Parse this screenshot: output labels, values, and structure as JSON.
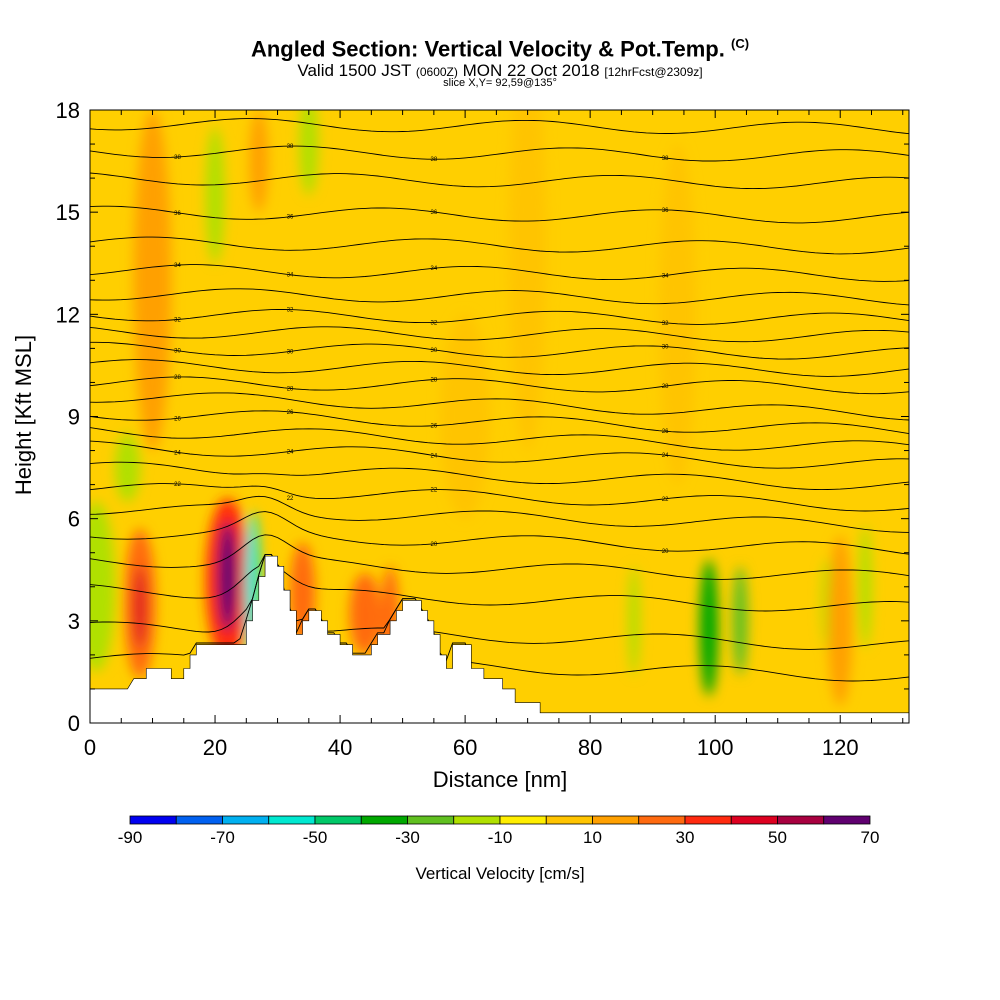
{
  "header": {
    "title_main": "Angled Section: Vertical Velocity & Pot.Temp.",
    "title_unit": "(C)",
    "valid_prefix": "Valid 1500 JST",
    "valid_utc": "(0600Z)",
    "valid_date": "MON 22 Oct 2018",
    "valid_fcst": "[12hrFcst@2309z]",
    "slice": "slice X,Y= 92,59@135°"
  },
  "chart_data": {
    "type": "heatmap",
    "xlabel": "Distance [nm]",
    "ylabel": "Height [Kft MSL]",
    "xlim": [
      0,
      131
    ],
    "ylim": [
      0,
      18
    ],
    "xticks": [
      0,
      20,
      40,
      60,
      80,
      100,
      120
    ],
    "yticks": [
      0,
      3,
      6,
      9,
      12,
      15,
      18
    ],
    "colorbar": {
      "title": "Vertical Velocity [cm/s]",
      "ticks": [
        -90,
        -70,
        -50,
        -30,
        -10,
        10,
        30,
        50,
        70
      ],
      "bins": [
        -90,
        -80,
        -70,
        -60,
        -50,
        -40,
        -30,
        -20,
        -10,
        0,
        10,
        20,
        30,
        40,
        50,
        60,
        70
      ],
      "colors": [
        "#0000f0",
        "#0060f0",
        "#00b0f0",
        "#00e8d0",
        "#00c868",
        "#00a800",
        "#60c020",
        "#b0e000",
        "#ffee00",
        "#ffc400",
        "#ffa000",
        "#ff6a10",
        "#ff2a10",
        "#dd0020",
        "#a80040",
        "#600070"
      ]
    },
    "terrain": [
      [
        0,
        1
      ],
      [
        6,
        1
      ],
      [
        7,
        1.3
      ],
      [
        9,
        1.3
      ],
      [
        9,
        1.6
      ],
      [
        13,
        1.6
      ],
      [
        13,
        1.3
      ],
      [
        15,
        1.3
      ],
      [
        15,
        1.6
      ],
      [
        16,
        1.6
      ],
      [
        16,
        2
      ],
      [
        17,
        2
      ],
      [
        17,
        2.3
      ],
      [
        25,
        2.3
      ],
      [
        25,
        3
      ],
      [
        26,
        3
      ],
      [
        26,
        3.6
      ],
      [
        27,
        3.6
      ],
      [
        27,
        4.3
      ],
      [
        28,
        4.3
      ],
      [
        28,
        4.9
      ],
      [
        30,
        4.9
      ],
      [
        30,
        4.6
      ],
      [
        31,
        4.6
      ],
      [
        31,
        3.9
      ],
      [
        32,
        3.9
      ],
      [
        32,
        3.3
      ],
      [
        33,
        3.3
      ],
      [
        33,
        2.6
      ],
      [
        34,
        2.6
      ],
      [
        34,
        3
      ],
      [
        35,
        3
      ],
      [
        35,
        3.3
      ],
      [
        37,
        3.3
      ],
      [
        37,
        3
      ],
      [
        38,
        3
      ],
      [
        38,
        2.6
      ],
      [
        40,
        2.6
      ],
      [
        40,
        2.3
      ],
      [
        42,
        2.3
      ],
      [
        42,
        2
      ],
      [
        45,
        2
      ],
      [
        45,
        2.3
      ],
      [
        46,
        2.3
      ],
      [
        46,
        2.6
      ],
      [
        48,
        2.6
      ],
      [
        48,
        3
      ],
      [
        49,
        3
      ],
      [
        49,
        3.3
      ],
      [
        50,
        3.3
      ],
      [
        50,
        3.6
      ],
      [
        53,
        3.6
      ],
      [
        53,
        3.3
      ],
      [
        54,
        3.3
      ],
      [
        54,
        3
      ],
      [
        55,
        3
      ],
      [
        55,
        2.6
      ],
      [
        56,
        2.6
      ],
      [
        56,
        2
      ],
      [
        57,
        2
      ],
      [
        57,
        1.6
      ],
      [
        58,
        1.6
      ],
      [
        58,
        2.3
      ],
      [
        61,
        2.3
      ],
      [
        61,
        1.6
      ],
      [
        63,
        1.6
      ],
      [
        63,
        1.3
      ],
      [
        66,
        1.3
      ],
      [
        66,
        1
      ],
      [
        68,
        1
      ],
      [
        68,
        0.6
      ],
      [
        72,
        0.6
      ],
      [
        72,
        0.3
      ],
      [
        131,
        0.3
      ]
    ],
    "theta_lines": [
      {
        "y0": 1.9,
        "label": ""
      },
      {
        "y0": 2.8,
        "label": ""
      },
      {
        "y0": 3.9,
        "label": ""
      },
      {
        "y0": 4.8,
        "label": ""
      },
      {
        "y0": 5.6,
        "label": "20"
      },
      {
        "y0": 6.3,
        "label": ""
      },
      {
        "y0": 6.9,
        "label": "22"
      },
      {
        "y0": 7.5,
        "label": ""
      },
      {
        "y0": 8.1,
        "label": "24"
      },
      {
        "y0": 8.6,
        "label": ""
      },
      {
        "y0": 9.1,
        "label": "26"
      },
      {
        "y0": 9.6,
        "label": ""
      },
      {
        "y0": 10.0,
        "label": "28"
      },
      {
        "y0": 10.5,
        "label": ""
      },
      {
        "y0": 11.0,
        "label": "30"
      },
      {
        "y0": 11.5,
        "label": ""
      },
      {
        "y0": 12.0,
        "label": "32"
      },
      {
        "y0": 12.6,
        "label": ""
      },
      {
        "y0": 13.3,
        "label": "34"
      },
      {
        "y0": 14.1,
        "label": ""
      },
      {
        "y0": 15.0,
        "label": "36"
      },
      {
        "y0": 16.0,
        "label": ""
      },
      {
        "y0": 16.8,
        "label": "38"
      },
      {
        "y0": 17.6,
        "label": ""
      }
    ],
    "velocity_cells": [
      {
        "x": 8,
        "y": 3.5,
        "rx": 2.5,
        "ry": 2.2,
        "w": 25
      },
      {
        "x": 8,
        "y": 3.4,
        "rx": 1,
        "ry": 1.2,
        "w": 45
      },
      {
        "x": 22,
        "y": 4.2,
        "rx": 3.5,
        "ry": 2.4,
        "w": 30
      },
      {
        "x": 22,
        "y": 4.3,
        "rx": 1.5,
        "ry": 1.6,
        "w": 62
      },
      {
        "x": 26,
        "y": 4,
        "rx": 1.2,
        "ry": 2.2,
        "w": -55
      },
      {
        "x": 34,
        "y": 3.8,
        "rx": 2,
        "ry": 1.5,
        "w": 22
      },
      {
        "x": 44,
        "y": 3.2,
        "rx": 2.5,
        "ry": 1.2,
        "w": 25
      },
      {
        "x": 1,
        "y": 4,
        "rx": 3,
        "ry": 2.5,
        "w": -18
      },
      {
        "x": 99,
        "y": 2.8,
        "rx": 1.5,
        "ry": 2,
        "w": -32
      },
      {
        "x": 104,
        "y": 3,
        "rx": 1.2,
        "ry": 1.6,
        "w": -22
      },
      {
        "x": 87,
        "y": 3,
        "rx": 0.9,
        "ry": 1.6,
        "w": -20
      },
      {
        "x": 124,
        "y": 4,
        "rx": 1,
        "ry": 1.8,
        "w": -20
      },
      {
        "x": 118,
        "y": 3.5,
        "rx": 1,
        "ry": 1.3,
        "w": -15
      },
      {
        "x": 48,
        "y": 2.8,
        "rx": 1.5,
        "ry": 1.8,
        "w": 22
      },
      {
        "x": 35,
        "y": 17,
        "rx": 1.5,
        "ry": 1.5,
        "w": -20
      },
      {
        "x": 27,
        "y": 16.5,
        "rx": 1.5,
        "ry": 1.5,
        "w": 15
      },
      {
        "x": 20,
        "y": 15.5,
        "rx": 1.5,
        "ry": 2,
        "w": -15
      },
      {
        "x": 120,
        "y": 3,
        "rx": 2,
        "ry": 2.5,
        "w": 12
      },
      {
        "x": 94,
        "y": 12,
        "rx": 3,
        "ry": 5,
        "w": 8
      },
      {
        "x": 70,
        "y": 14,
        "rx": 3,
        "ry": 6,
        "w": 8
      },
      {
        "x": 10,
        "y": 13,
        "rx": 3,
        "ry": 5,
        "w": 10
      },
      {
        "x": 60,
        "y": 9,
        "rx": 4,
        "ry": 3,
        "w": 8
      },
      {
        "x": 6,
        "y": 7.5,
        "rx": 2,
        "ry": 1,
        "w": -18
      }
    ]
  }
}
